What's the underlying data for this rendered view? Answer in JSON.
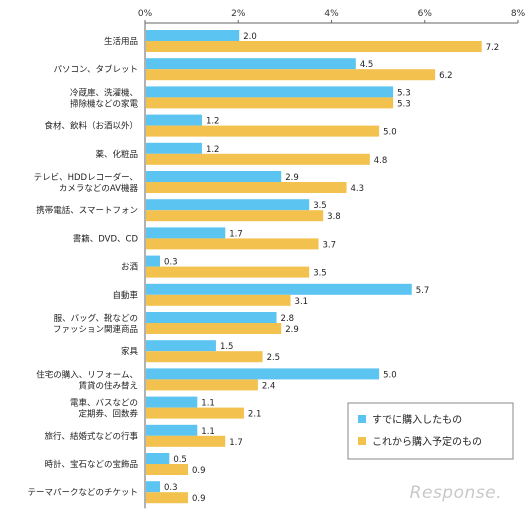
{
  "chart_data": {
    "type": "bar",
    "orientation": "horizontal",
    "categories": [
      [
        "生活用品"
      ],
      [
        "パソコン、タブレット"
      ],
      [
        "冷蔵庫、洗濯機、",
        "掃除機などの家電"
      ],
      [
        "食材、飲料（お酒以外）"
      ],
      [
        "薬、化粧品"
      ],
      [
        "テレビ、HDDレコーダー、",
        "カメラなどのAV機器"
      ],
      [
        "携帯電話、スマートフォン"
      ],
      [
        "書籍、DVD、CD"
      ],
      [
        "お酒"
      ],
      [
        "自動車"
      ],
      [
        "服、バッグ、靴などの",
        "ファッション関連商品"
      ],
      [
        "家具"
      ],
      [
        "住宅の購入、リフォーム、",
        "賃貸の住み替え"
      ],
      [
        "電車、バスなどの",
        "定期券、回数券"
      ],
      [
        "旅行、結婚式などの行事"
      ],
      [
        "時計、宝石などの宝飾品"
      ],
      [
        "テーマパークなどのチケット"
      ]
    ],
    "series": [
      {
        "name": "すでに購入したもの",
        "color": "#5bc4f0",
        "values": [
          2.0,
          4.5,
          5.3,
          1.2,
          1.2,
          2.9,
          3.5,
          1.7,
          0.3,
          5.7,
          2.8,
          1.5,
          5.0,
          1.1,
          1.1,
          0.5,
          0.3
        ]
      },
      {
        "name": "これから購入予定のもの",
        "color": "#f2c14e",
        "values": [
          7.2,
          6.2,
          5.3,
          5.0,
          4.8,
          4.3,
          3.8,
          3.7,
          3.5,
          3.1,
          2.9,
          2.5,
          2.4,
          2.1,
          1.7,
          0.9,
          0.9
        ]
      }
    ],
    "xlim": [
      0,
      8
    ],
    "xticks": [
      "0%",
      "2%",
      "4%",
      "6%",
      "8%"
    ],
    "grid": false,
    "legend_position": "bottom-right"
  },
  "watermark": "Response."
}
